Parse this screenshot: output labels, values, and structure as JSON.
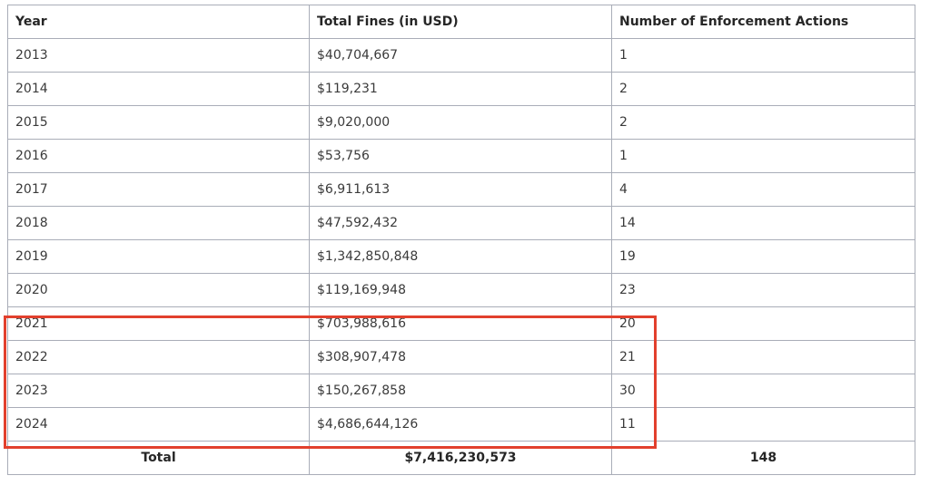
{
  "table": {
    "headers": [
      "Year",
      "Total Fines (in USD)",
      "Number of Enforcement Actions"
    ],
    "rows": [
      [
        "2013",
        "$40,704,667",
        "1"
      ],
      [
        "2014",
        "$119,231",
        "2"
      ],
      [
        "2015",
        "$9,020,000",
        "2"
      ],
      [
        "2016",
        "$53,756",
        "1"
      ],
      [
        "2017",
        "$6,911,613",
        "4"
      ],
      [
        "2018",
        "$47,592,432",
        "14"
      ],
      [
        "2019",
        "$1,342,850,848",
        "19"
      ],
      [
        "2020",
        "$119,169,948",
        "23"
      ],
      [
        "2021",
        "$703,988,616",
        "20"
      ],
      [
        "2022",
        "$308,907,478",
        "21"
      ],
      [
        "2023",
        "$150,267,858",
        "30"
      ],
      [
        "2024",
        "$4,686,644,126",
        "11"
      ]
    ],
    "footer": [
      "Total",
      "$7,416,230,573",
      "148"
    ]
  },
  "highlight": {
    "color": "#e2402d",
    "rows_from_year": "2021",
    "rows_to_year": "2024"
  }
}
